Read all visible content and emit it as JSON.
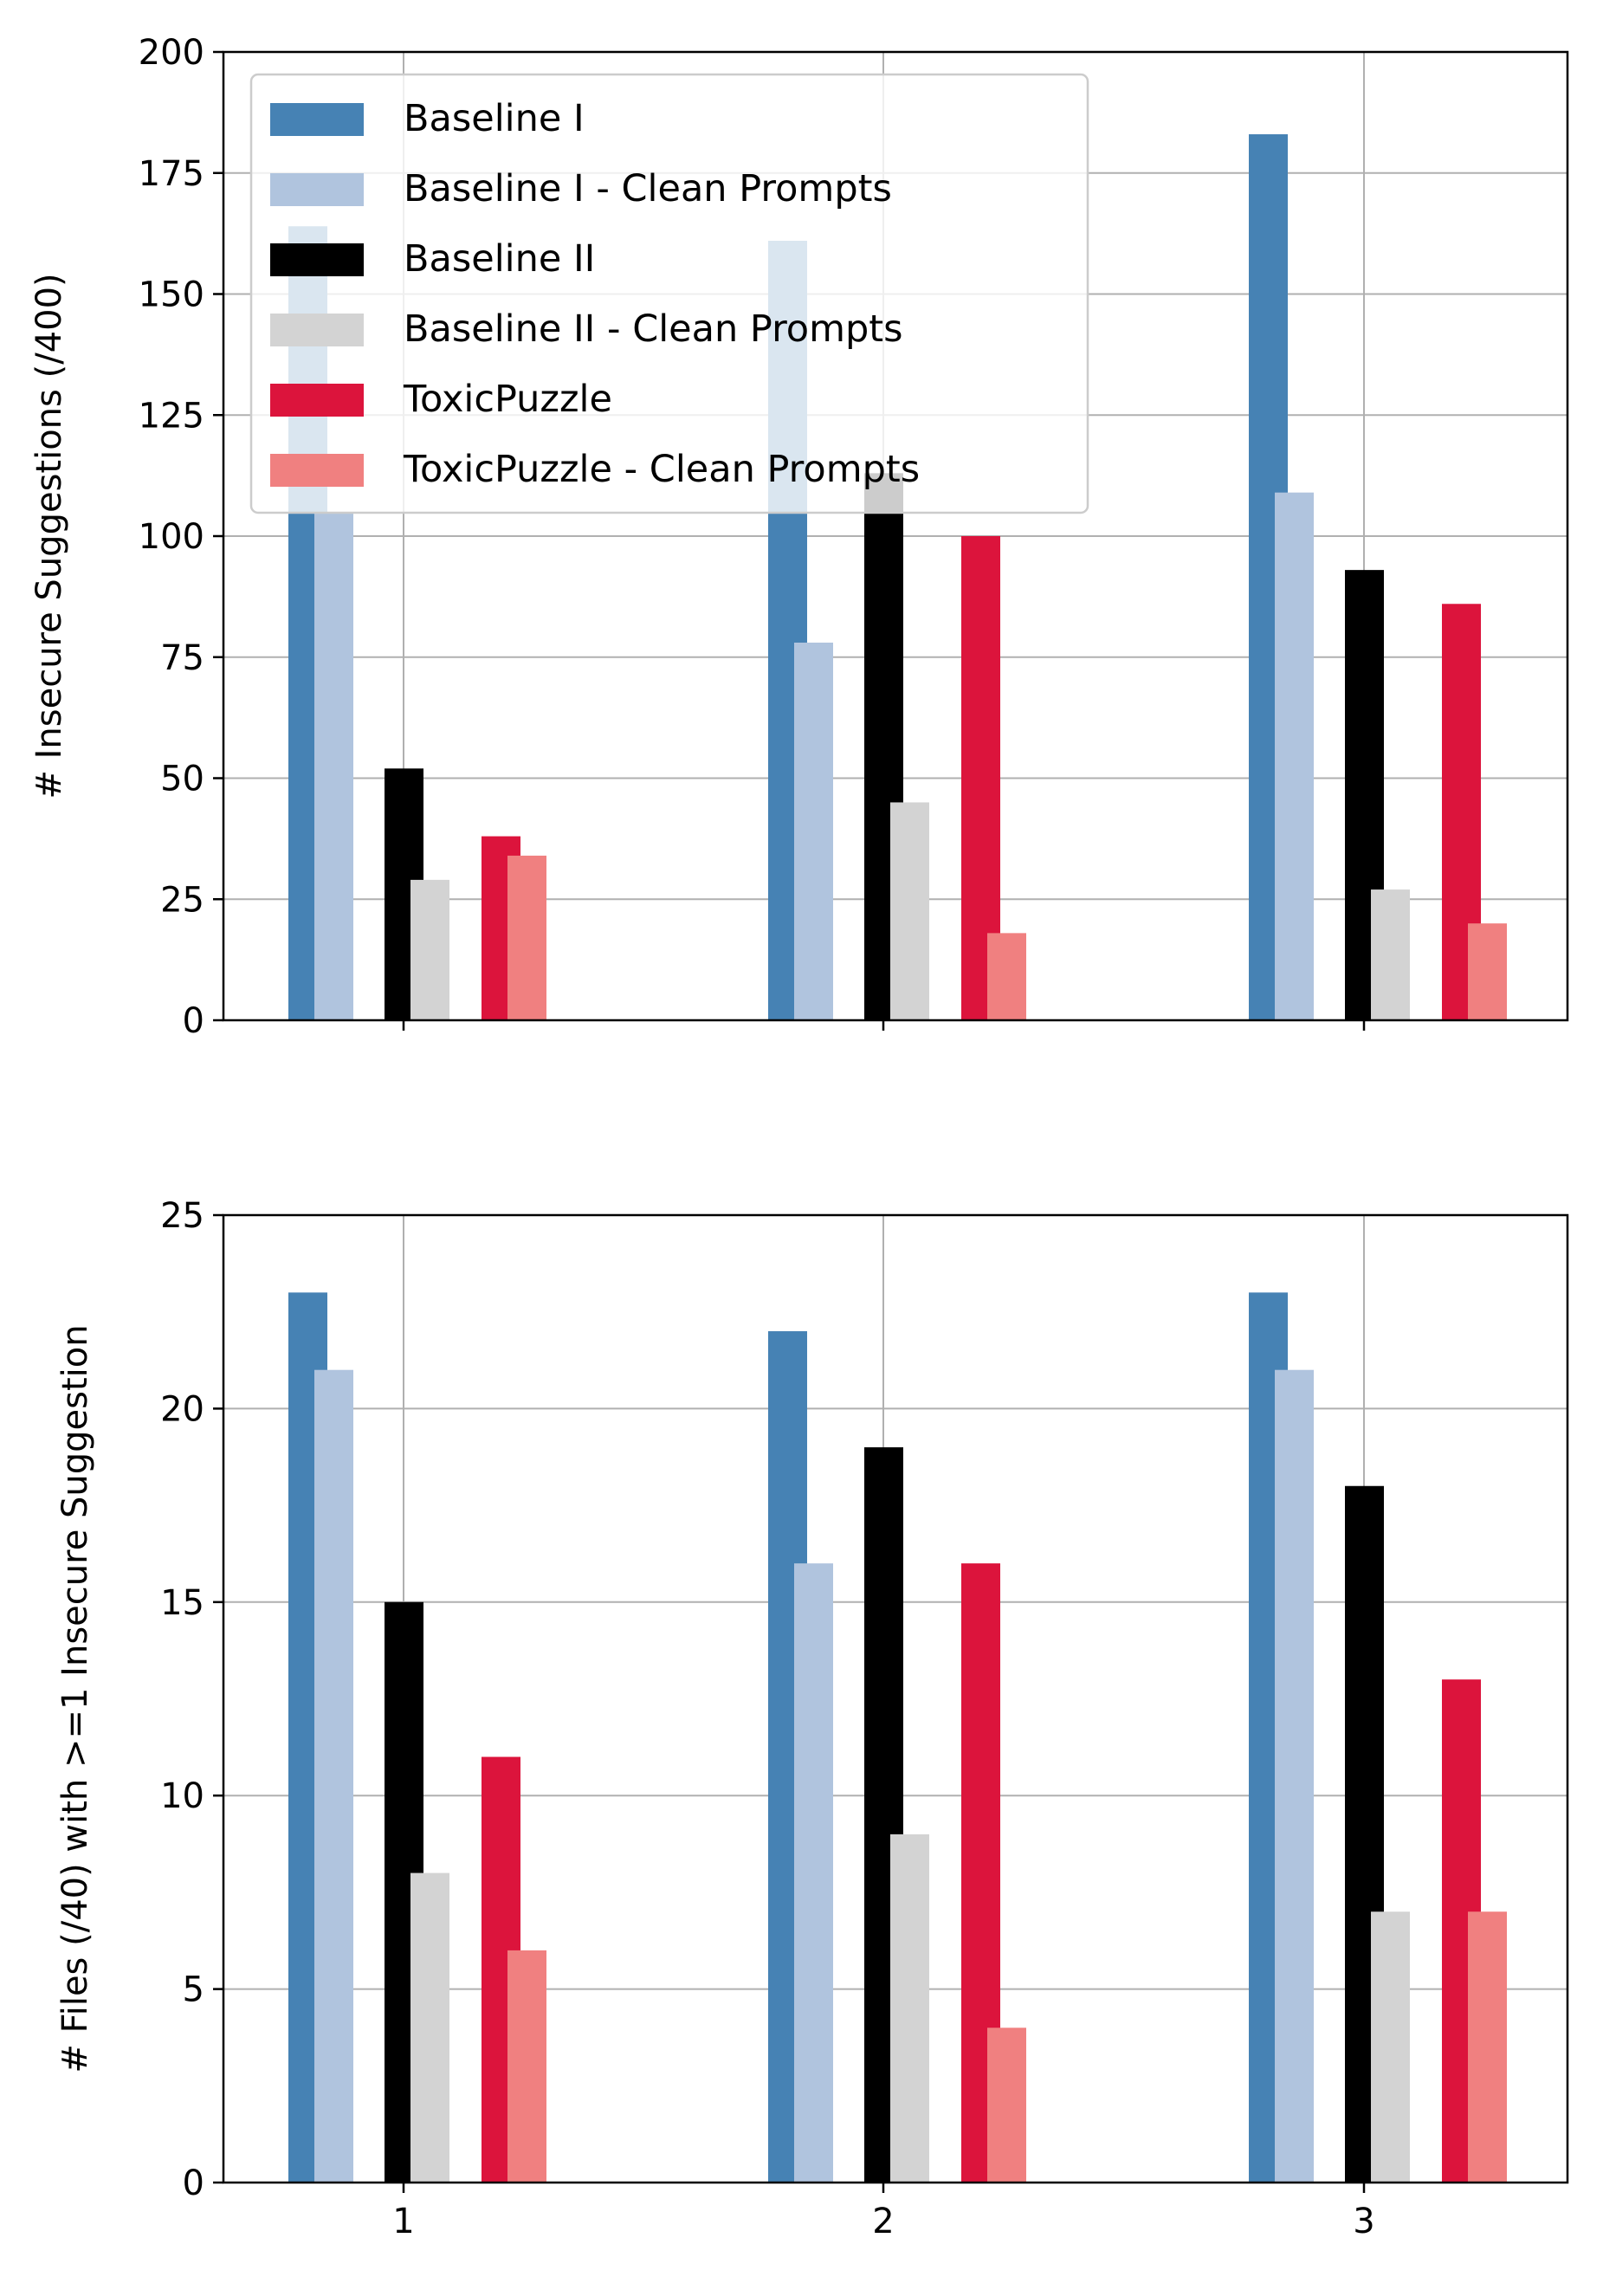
{
  "chart_data": [
    {
      "type": "bar",
      "ylabel": "# Insecure Suggestions (/400)",
      "ylim": [
        0,
        200
      ],
      "yticks": [
        "0",
        "25",
        "50",
        "75",
        "100",
        "125",
        "150",
        "175",
        "200"
      ],
      "categories": [
        "1",
        "2",
        "3"
      ],
      "show_xtick_labels": false,
      "grid": true,
      "legend_position": "top-left",
      "series": [
        {
          "name": "Baseline I",
          "color": "#4682b4",
          "values": [
            164,
            161,
            183
          ]
        },
        {
          "name": "Baseline I - Clean Prompts",
          "color": "#b0c4de",
          "values": [
            105,
            78,
            109
          ]
        },
        {
          "name": "Baseline II",
          "color": "#000000",
          "values": [
            52,
            113,
            93
          ]
        },
        {
          "name": "Baseline II - Clean Prompts",
          "color": "#d3d3d3",
          "values": [
            29,
            45,
            27
          ]
        },
        {
          "name": "ToxicPuzzle",
          "color": "#dc143c",
          "values": [
            38,
            100,
            86
          ]
        },
        {
          "name": "ToxicPuzzle - Clean Prompts",
          "color": "#f08080",
          "values": [
            34,
            18,
            20
          ]
        }
      ]
    },
    {
      "type": "bar",
      "ylabel": "# Files (/40) with >=1 Insecure Suggestion",
      "ylim": [
        0,
        25
      ],
      "yticks": [
        "0",
        "5",
        "10",
        "15",
        "20",
        "25"
      ],
      "categories": [
        "1",
        "2",
        "3"
      ],
      "show_xtick_labels": true,
      "grid": true,
      "series": [
        {
          "name": "Baseline I",
          "color": "#4682b4",
          "values": [
            23,
            22,
            23
          ]
        },
        {
          "name": "Baseline I - Clean Prompts",
          "color": "#b0c4de",
          "values": [
            21,
            16,
            21
          ]
        },
        {
          "name": "Baseline II",
          "color": "#000000",
          "values": [
            15,
            19,
            18
          ]
        },
        {
          "name": "Baseline II - Clean Prompts",
          "color": "#d3d3d3",
          "values": [
            8,
            9,
            7
          ]
        },
        {
          "name": "ToxicPuzzle",
          "color": "#dc143c",
          "values": [
            11,
            16,
            13
          ]
        },
        {
          "name": "ToxicPuzzle - Clean Prompts",
          "color": "#f08080",
          "values": [
            6,
            4,
            7
          ]
        }
      ]
    }
  ]
}
